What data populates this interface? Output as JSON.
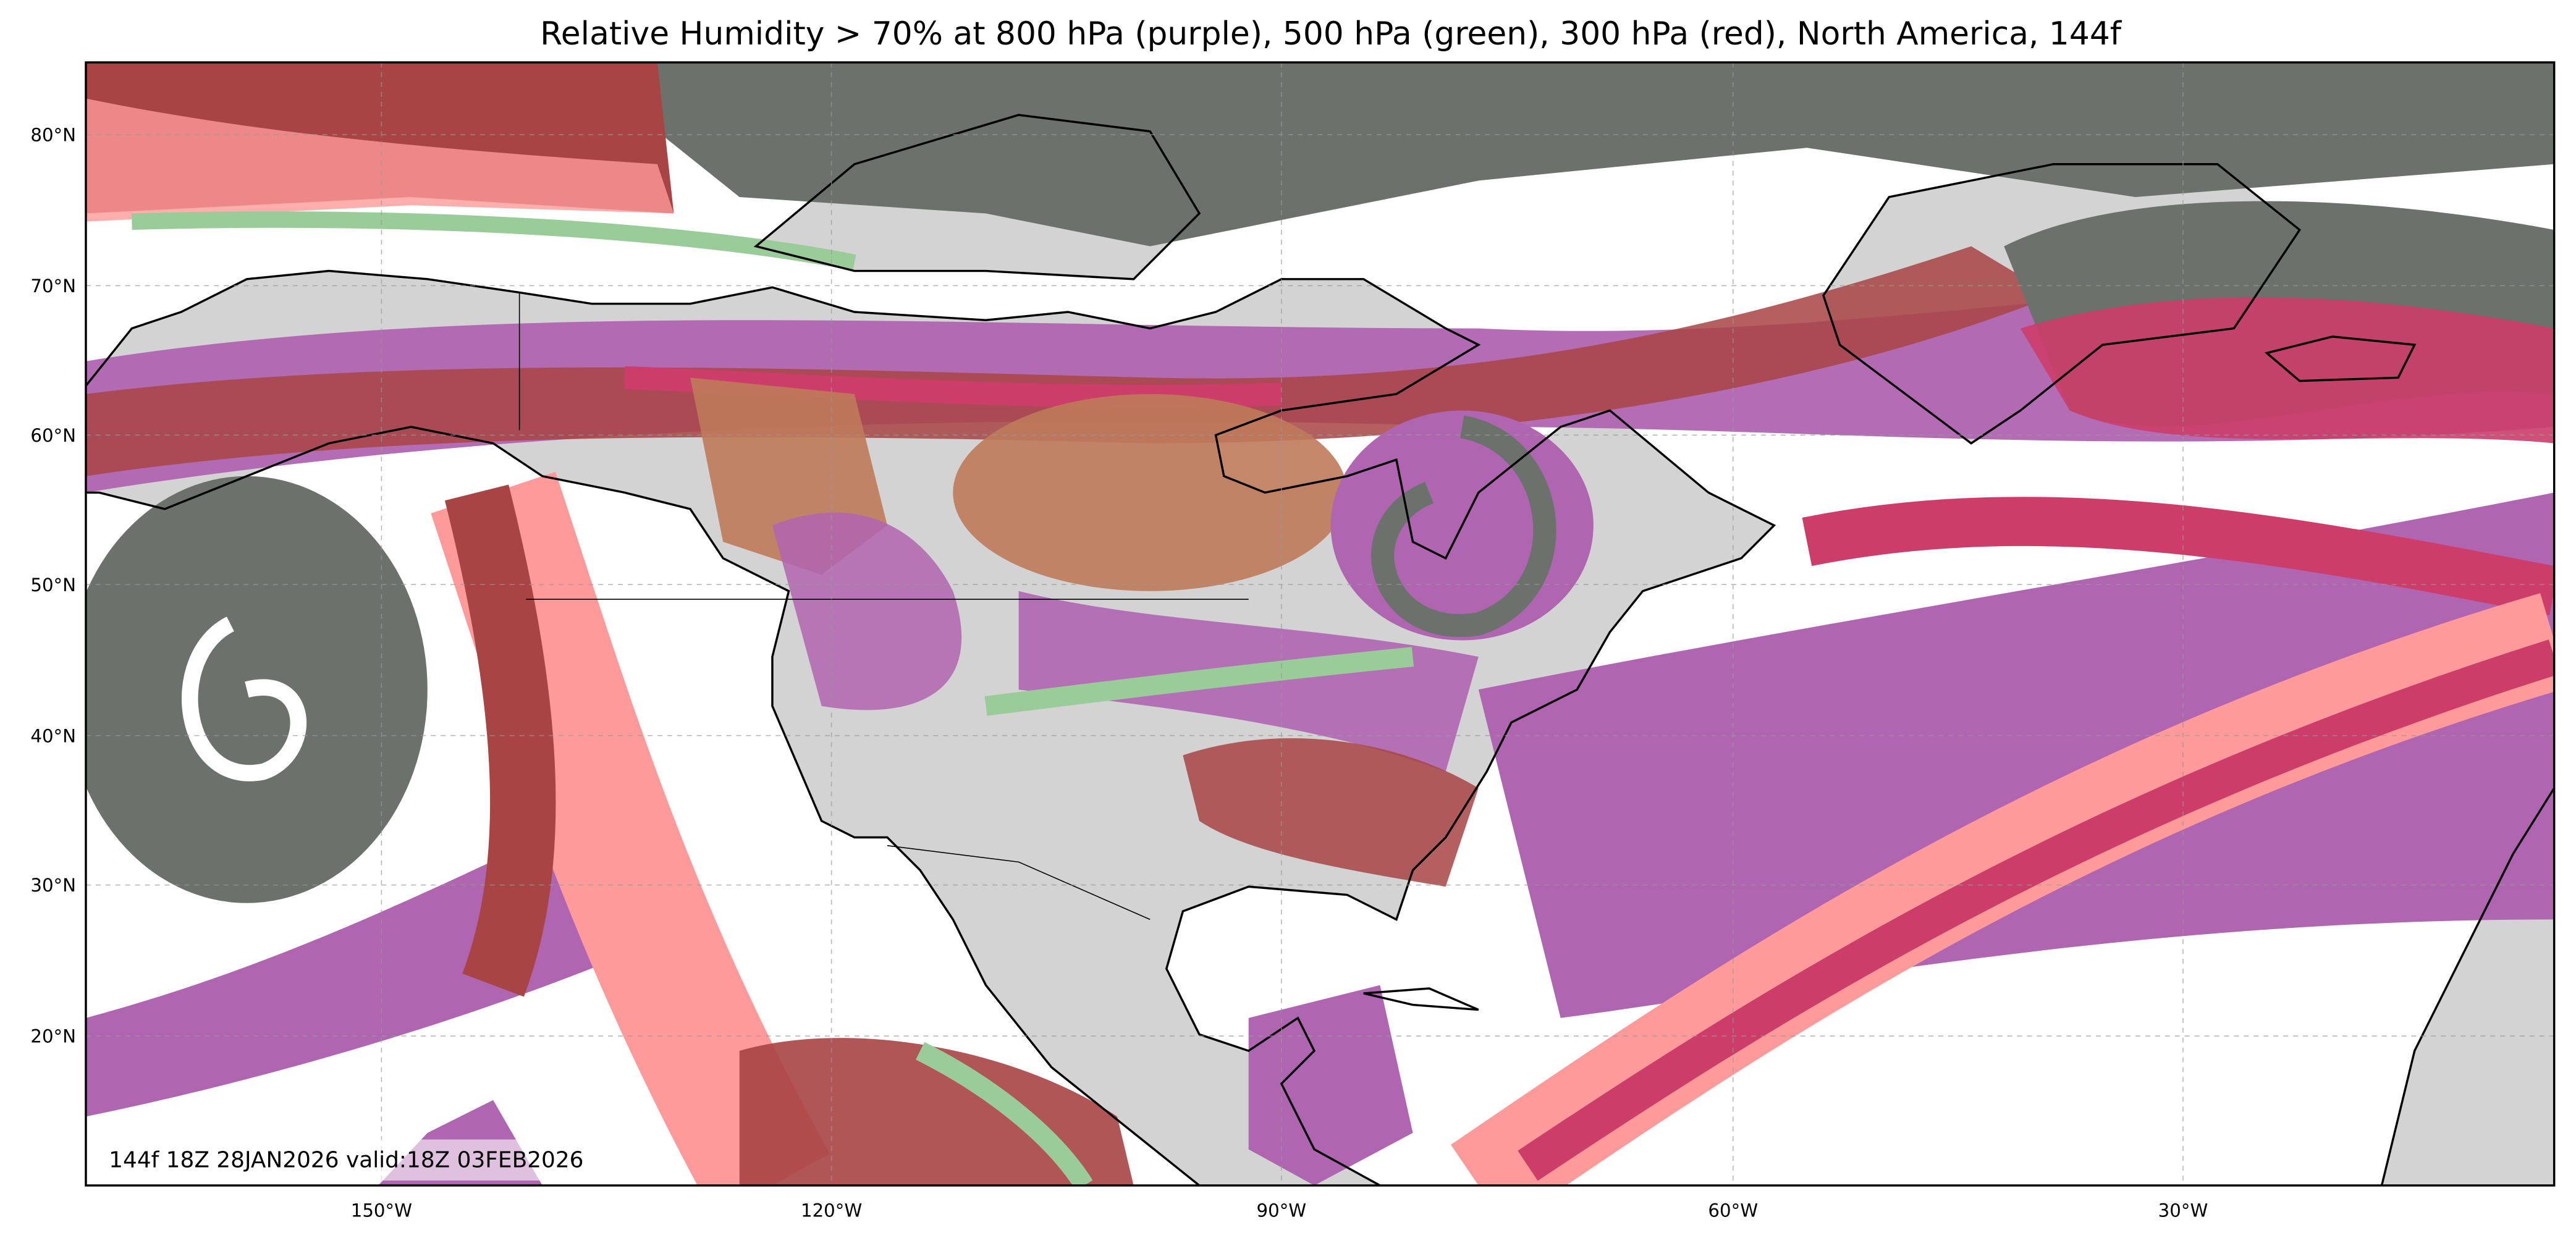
{
  "title": "Relative Humidity > 70% at 800 hPa (purple), 500 hPa (green), 300 hPa (red), North America, 144f",
  "annotation": "144f 18Z 28JAN2026 valid:18Z 03FEB2026",
  "map": {
    "projection": "PlateCarree",
    "extent": {
      "lon": [
        -170,
        -5
      ],
      "lat": [
        10,
        85
      ]
    },
    "gridlines": true,
    "lon_labels": [
      "150°W",
      "120°W",
      "90°W",
      "60°W",
      "30°W"
    ],
    "lat_labels": [
      "80°N",
      "70°N",
      "60°N",
      "50°N",
      "40°N",
      "30°N",
      "20°N"
    ],
    "layers": [
      {
        "level": "800 hPa",
        "color": "#b065b0"
      },
      {
        "level": "500 hPa",
        "color": "#99cc99"
      },
      {
        "level": "300 hPa",
        "color": "#ff9a9a"
      }
    ],
    "land_color": "#d3d3d3",
    "overlap_colors": {
      "all_three": "#6b716b",
      "purple_red": "#cc3d6a",
      "green_red": "#bf7a5a",
      "dark_red": "#a84444"
    }
  }
}
